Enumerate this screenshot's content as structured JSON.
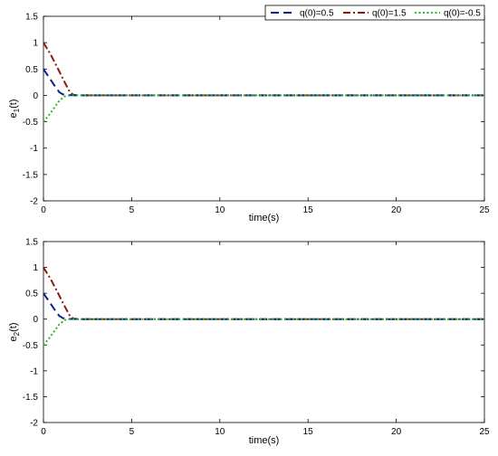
{
  "chart_data": [
    {
      "type": "line",
      "title": "",
      "xlabel": "time(s)",
      "ylabel_main": "e",
      "ylabel_sub": "1",
      "ylabel_tail": "(t)",
      "xlim": [
        0,
        25
      ],
      "ylim": [
        -2,
        1.5
      ],
      "xticks": [
        "0",
        "5",
        "10",
        "15",
        "20",
        "25"
      ],
      "yticks": [
        "-2",
        "-1.5",
        "-1",
        "-0.5",
        "0",
        "0.5",
        "1",
        "1.5"
      ],
      "grid": false,
      "legend": "top-right",
      "series": [
        {
          "name": "q(0)=0.5",
          "color": "#0b1f8c",
          "dash": "dash",
          "x": [
            0,
            0.3,
            0.6,
            0.9,
            1.1,
            1.4,
            2,
            5,
            10,
            15,
            20,
            25
          ],
          "y": [
            0.5,
            0.35,
            0.2,
            0.06,
            0.02,
            0.005,
            0,
            0,
            0,
            0,
            0,
            0
          ]
        },
        {
          "name": "q(0)=1.5",
          "color": "#8b1a0e",
          "dash": "dashdot",
          "x": [
            0,
            0.4,
            0.8,
            1.2,
            1.5,
            1.7,
            2,
            5,
            10,
            15,
            20,
            25
          ],
          "y": [
            1.0,
            0.78,
            0.52,
            0.25,
            0.06,
            0.01,
            0,
            0,
            0,
            0,
            0,
            0
          ]
        },
        {
          "name": "q(0)=-0.5",
          "color": "#2db52d",
          "dash": "dot",
          "x": [
            0,
            0.3,
            0.6,
            0.9,
            1.2,
            1.5,
            2,
            5,
            10,
            15,
            20,
            25
          ],
          "y": [
            -0.5,
            -0.38,
            -0.24,
            -0.1,
            -0.02,
            0,
            0,
            0,
            0,
            0,
            0,
            0
          ]
        }
      ]
    },
    {
      "type": "line",
      "title": "",
      "xlabel": "time(s)",
      "ylabel_main": "e",
      "ylabel_sub": "2",
      "ylabel_tail": "(t)",
      "xlim": [
        0,
        25
      ],
      "ylim": [
        -2,
        1.5
      ],
      "xticks": [
        "0",
        "5",
        "10",
        "15",
        "20",
        "25"
      ],
      "yticks": [
        "-2",
        "-1.5",
        "-1",
        "-0.5",
        "0",
        "0.5",
        "1",
        "1.5"
      ],
      "grid": false,
      "series": [
        {
          "name": "q(0)=0.5",
          "color": "#0b1f8c",
          "dash": "dash",
          "x": [
            0,
            0.3,
            0.6,
            0.9,
            1.1,
            1.4,
            2,
            5,
            10,
            15,
            20,
            25
          ],
          "y": [
            0.5,
            0.35,
            0.2,
            0.06,
            0.02,
            0.005,
            0,
            0,
            0,
            0,
            0,
            0
          ]
        },
        {
          "name": "q(0)=1.5",
          "color": "#8b1a0e",
          "dash": "dashdot",
          "x": [
            0,
            0.4,
            0.8,
            1.2,
            1.5,
            1.7,
            2,
            5,
            10,
            15,
            20,
            25
          ],
          "y": [
            1.0,
            0.78,
            0.52,
            0.25,
            0.06,
            0.01,
            0,
            0,
            0,
            0,
            0,
            0
          ]
        },
        {
          "name": "q(0)=-0.5",
          "color": "#2db52d",
          "dash": "dot",
          "x": [
            0,
            0.3,
            0.6,
            0.9,
            1.2,
            1.5,
            2,
            5,
            10,
            15,
            20,
            25
          ],
          "y": [
            -0.5,
            -0.38,
            -0.24,
            -0.1,
            -0.02,
            0,
            0,
            0,
            0,
            0,
            0,
            0
          ]
        }
      ]
    }
  ]
}
